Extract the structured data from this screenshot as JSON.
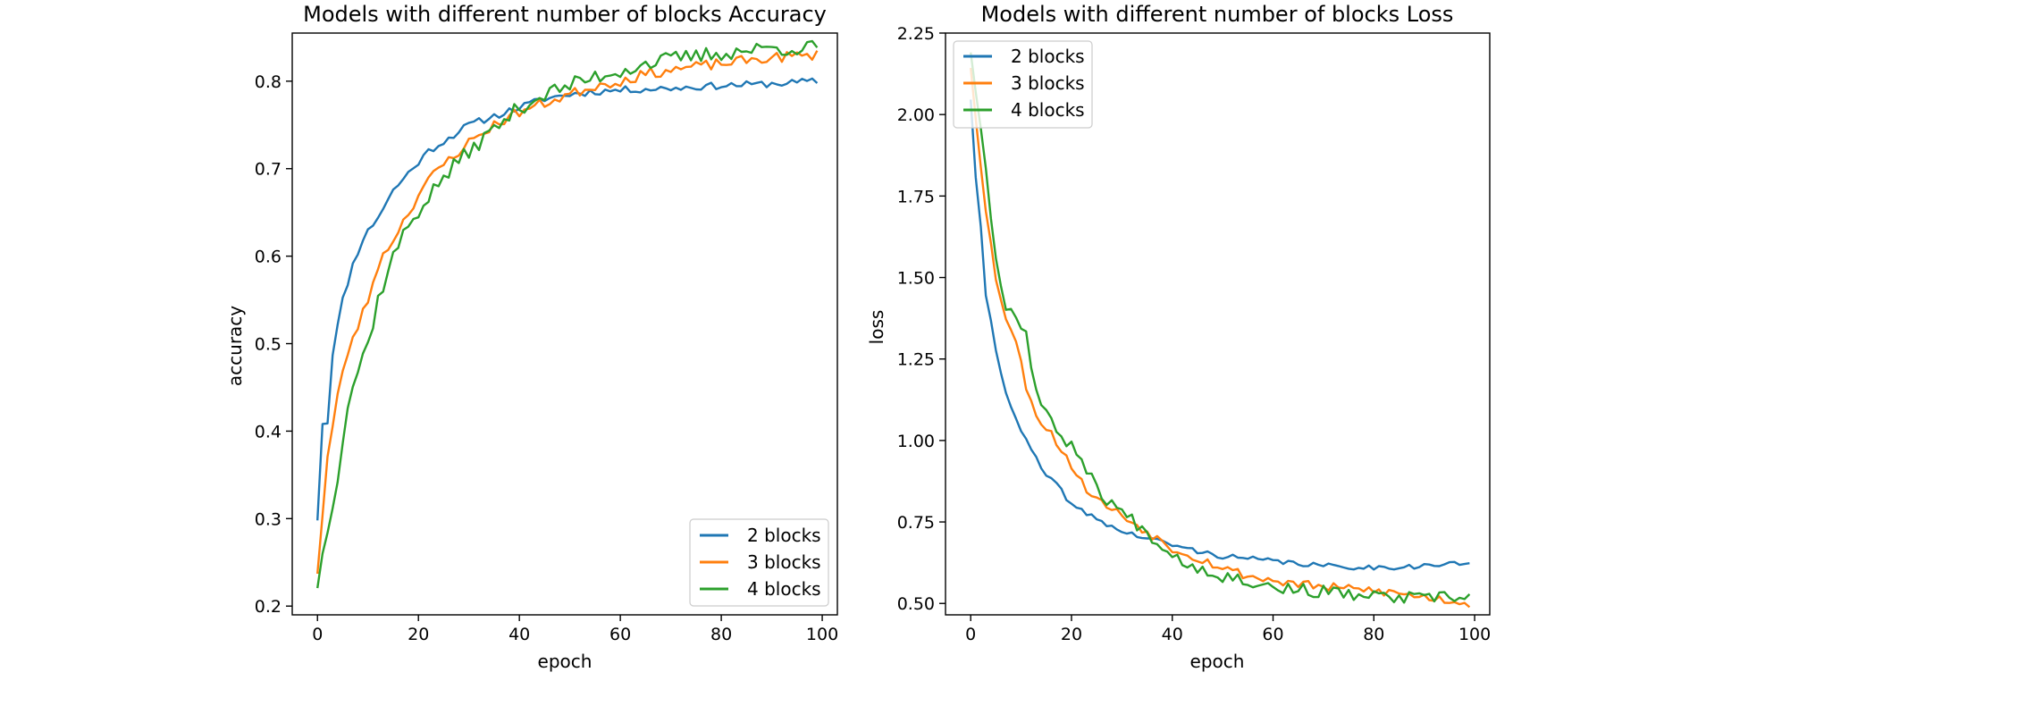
{
  "chart_data": [
    {
      "type": "line",
      "title": "Models with different number of blocks Accuracy",
      "xlabel": "epoch",
      "ylabel": "accuracy",
      "xlim": [
        -5,
        103
      ],
      "ylim": [
        0.19,
        0.855
      ],
      "xticks": [
        0,
        20,
        40,
        60,
        80,
        100
      ],
      "yticks": [
        0.2,
        0.3,
        0.4,
        0.5,
        0.6,
        0.7,
        0.8
      ],
      "ytick_labels": [
        "0.2",
        "0.3",
        "0.4",
        "0.5",
        "0.6",
        "0.7",
        "0.8"
      ],
      "grid": false,
      "legend_position": "lower-right",
      "series": [
        {
          "name": "2 blocks",
          "color": "#1f77b4",
          "anchors": [
            [
              0,
              0.3
            ],
            [
              1,
              0.41
            ],
            [
              2,
              0.41
            ],
            [
              3,
              0.49
            ],
            [
              5,
              0.55
            ],
            [
              7,
              0.59
            ],
            [
              9,
              0.62
            ],
            [
              12,
              0.645
            ],
            [
              15,
              0.675
            ],
            [
              18,
              0.695
            ],
            [
              22,
              0.72
            ],
            [
              26,
              0.735
            ],
            [
              30,
              0.75
            ],
            [
              35,
              0.76
            ],
            [
              40,
              0.77
            ],
            [
              45,
              0.78
            ],
            [
              50,
              0.785
            ],
            [
              55,
              0.788
            ],
            [
              60,
              0.79
            ],
            [
              70,
              0.792
            ],
            [
              80,
              0.795
            ],
            [
              90,
              0.797
            ],
            [
              99,
              0.8
            ]
          ],
          "noise": 0.004,
          "seed": 11
        },
        {
          "name": "3 blocks",
          "color": "#ff7f0e",
          "anchors": [
            [
              0,
              0.24
            ],
            [
              2,
              0.37
            ],
            [
              4,
              0.44
            ],
            [
              6,
              0.49
            ],
            [
              8,
              0.52
            ],
            [
              10,
              0.55
            ],
            [
              12,
              0.59
            ],
            [
              15,
              0.62
            ],
            [
              18,
              0.65
            ],
            [
              21,
              0.68
            ],
            [
              25,
              0.705
            ],
            [
              30,
              0.73
            ],
            [
              35,
              0.75
            ],
            [
              40,
              0.765
            ],
            [
              45,
              0.775
            ],
            [
              50,
              0.785
            ],
            [
              55,
              0.795
            ],
            [
              60,
              0.8
            ],
            [
              65,
              0.808
            ],
            [
              70,
              0.813
            ],
            [
              80,
              0.82
            ],
            [
              90,
              0.827
            ],
            [
              99,
              0.83
            ]
          ],
          "noise": 0.006,
          "seed": 23
        },
        {
          "name": "4 blocks",
          "color": "#2ca02c",
          "anchors": [
            [
              0,
              0.225
            ],
            [
              2,
              0.29
            ],
            [
              4,
              0.35
            ],
            [
              6,
              0.43
            ],
            [
              8,
              0.47
            ],
            [
              10,
              0.5
            ],
            [
              12,
              0.55
            ],
            [
              15,
              0.6
            ],
            [
              18,
              0.635
            ],
            [
              21,
              0.66
            ],
            [
              25,
              0.69
            ],
            [
              30,
              0.72
            ],
            [
              35,
              0.745
            ],
            [
              40,
              0.77
            ],
            [
              45,
              0.785
            ],
            [
              50,
              0.795
            ],
            [
              55,
              0.805
            ],
            [
              60,
              0.812
            ],
            [
              65,
              0.82
            ],
            [
              70,
              0.825
            ],
            [
              80,
              0.832
            ],
            [
              90,
              0.838
            ],
            [
              99,
              0.838
            ]
          ],
          "noise": 0.009,
          "seed": 37
        }
      ]
    },
    {
      "type": "line",
      "title": "Models with different number of blocks Loss",
      "xlabel": "epoch",
      "ylabel": "loss",
      "xlim": [
        -5,
        103
      ],
      "ylim": [
        0.465,
        2.25
      ],
      "xticks": [
        0,
        20,
        40,
        60,
        80,
        100
      ],
      "yticks": [
        0.5,
        0.75,
        1.0,
        1.25,
        1.5,
        1.75,
        2.0,
        2.25
      ],
      "ytick_labels": [
        "0.50",
        "0.75",
        "1.00",
        "1.25",
        "1.50",
        "1.75",
        "2.00",
        "2.25"
      ],
      "grid": false,
      "legend_position": "upper-left",
      "series": [
        {
          "name": "2 blocks",
          "color": "#1f77b4",
          "anchors": [
            [
              0,
              2.05
            ],
            [
              1,
              1.8
            ],
            [
              2,
              1.65
            ],
            [
              3,
              1.45
            ],
            [
              5,
              1.28
            ],
            [
              7,
              1.15
            ],
            [
              9,
              1.06
            ],
            [
              12,
              0.97
            ],
            [
              15,
              0.89
            ],
            [
              18,
              0.85
            ],
            [
              20,
              0.8
            ],
            [
              25,
              0.76
            ],
            [
              30,
              0.72
            ],
            [
              35,
              0.7
            ],
            [
              40,
              0.68
            ],
            [
              45,
              0.66
            ],
            [
              50,
              0.645
            ],
            [
              60,
              0.63
            ],
            [
              70,
              0.615
            ],
            [
              80,
              0.61
            ],
            [
              90,
              0.615
            ],
            [
              99,
              0.625
            ]
          ],
          "noise": 0.008,
          "seed": 41
        },
        {
          "name": "3 blocks",
          "color": "#ff7f0e",
          "anchors": [
            [
              0,
              2.15
            ],
            [
              2,
              1.85
            ],
            [
              3,
              1.7
            ],
            [
              5,
              1.5
            ],
            [
              7,
              1.38
            ],
            [
              9,
              1.3
            ],
            [
              11,
              1.17
            ],
            [
              13,
              1.08
            ],
            [
              16,
              1.02
            ],
            [
              19,
              0.95
            ],
            [
              22,
              0.87
            ],
            [
              25,
              0.82
            ],
            [
              30,
              0.77
            ],
            [
              35,
              0.72
            ],
            [
              40,
              0.67
            ],
            [
              45,
              0.64
            ],
            [
              50,
              0.61
            ],
            [
              55,
              0.585
            ],
            [
              60,
              0.57
            ],
            [
              70,
              0.55
            ],
            [
              80,
              0.54
            ],
            [
              90,
              0.52
            ],
            [
              99,
              0.5
            ]
          ],
          "noise": 0.014,
          "seed": 53
        },
        {
          "name": "4 blocks",
          "color": "#2ca02c",
          "anchors": [
            [
              0,
              2.2
            ],
            [
              2,
              1.95
            ],
            [
              3,
              1.85
            ],
            [
              5,
              1.55
            ],
            [
              7,
              1.42
            ],
            [
              9,
              1.38
            ],
            [
              11,
              1.33
            ],
            [
              13,
              1.15
            ],
            [
              16,
              1.05
            ],
            [
              19,
              1.0
            ],
            [
              22,
              0.95
            ],
            [
              25,
              0.85
            ],
            [
              30,
              0.78
            ],
            [
              35,
              0.72
            ],
            [
              40,
              0.65
            ],
            [
              45,
              0.61
            ],
            [
              50,
              0.585
            ],
            [
              55,
              0.57
            ],
            [
              60,
              0.55
            ],
            [
              70,
              0.535
            ],
            [
              80,
              0.52
            ],
            [
              90,
              0.515
            ],
            [
              99,
              0.52
            ]
          ],
          "noise": 0.02,
          "seed": 67
        }
      ]
    }
  ]
}
